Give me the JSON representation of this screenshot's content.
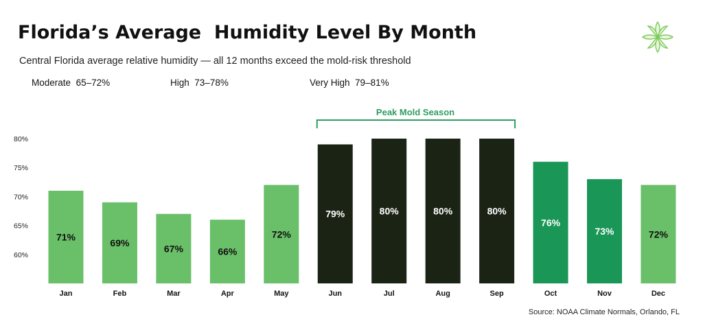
{
  "title": "Florida’s Average  Humidity Level By Month",
  "subtitle": "Central Florida average relative humidity — all 12 months exceed the mold-risk threshold",
  "legend": [
    {
      "label": "Moderate",
      "range": "65–72%"
    },
    {
      "label": "High",
      "range": "73–78%"
    },
    {
      "label": "Very High",
      "range": "79–81%"
    }
  ],
  "source": "Source: NOAA Climate Normals, Orlando, FL",
  "logo_icon": "leaf-flower-logo-icon",
  "colors": {
    "moderate": "#6abf69",
    "high": "#1a9656",
    "very_high": "#1a2314",
    "peak_bracket": "#2e9d62",
    "label_dark": "#111111",
    "label_light": "#ffffff"
  },
  "chart_data": {
    "type": "bar",
    "categories": [
      "Jan",
      "Feb",
      "Mar",
      "Apr",
      "May",
      "Jun",
      "Jul",
      "Aug",
      "Sep",
      "Oct",
      "Nov",
      "Dec"
    ],
    "values": [
      71,
      69,
      67,
      66,
      72,
      79,
      80,
      80,
      80,
      76,
      73,
      72
    ],
    "data_labels": [
      "71%",
      "69%",
      "67%",
      "66%",
      "72%",
      "79%",
      "80%",
      "80%",
      "80%",
      "76%",
      "73%",
      "72%"
    ],
    "levels": [
      "moderate",
      "moderate",
      "moderate",
      "moderate",
      "moderate",
      "very_high",
      "very_high",
      "very_high",
      "very_high",
      "high",
      "high",
      "moderate"
    ],
    "ylim": [
      55,
      80
    ],
    "yticks": [
      60,
      65,
      70,
      75,
      80
    ],
    "ytick_labels": [
      "60%",
      "65%",
      "70%",
      "75%",
      "80%"
    ],
    "annotation": {
      "label": "Peak Mold Season",
      "from": "Jun",
      "to": "Sep"
    },
    "grid": false,
    "xlabel": "",
    "ylabel": ""
  }
}
